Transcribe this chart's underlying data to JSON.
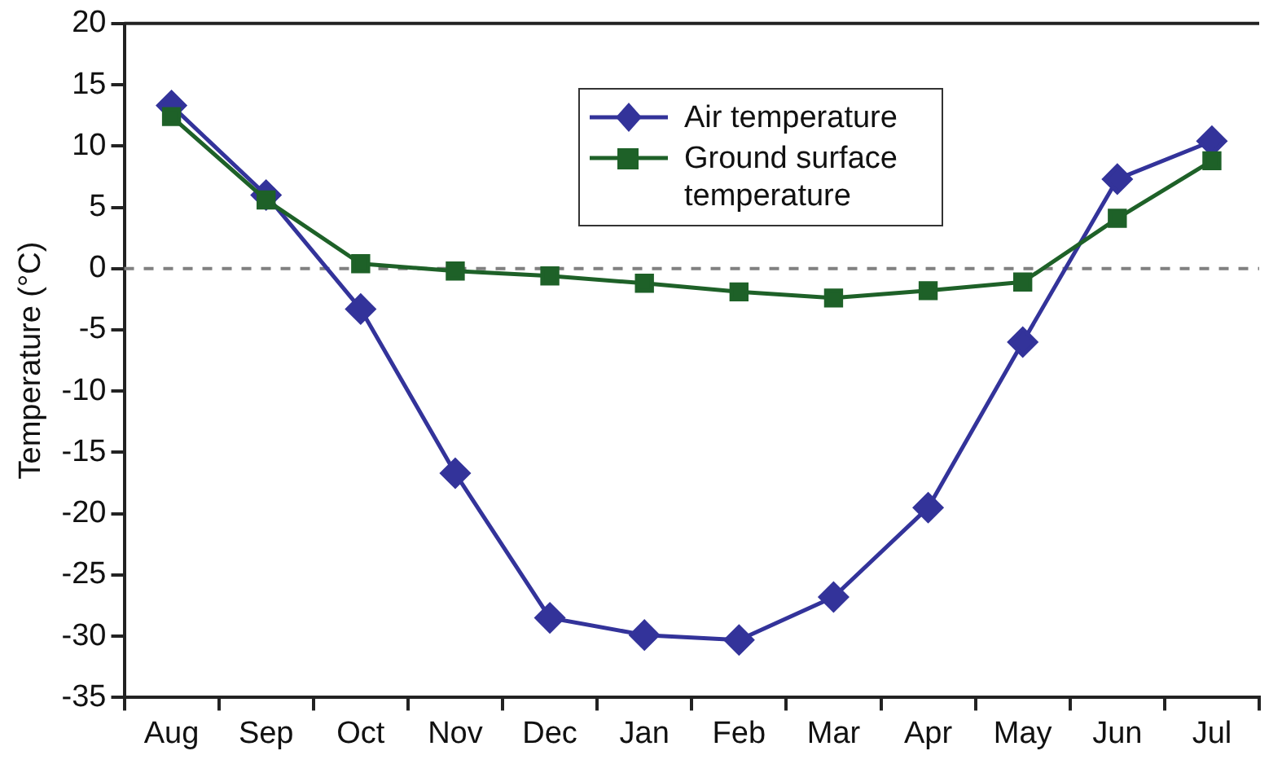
{
  "chart_data": {
    "type": "line",
    "ylabel": "Temperature (°C)",
    "categories": [
      "Aug",
      "Sep",
      "Oct",
      "Nov",
      "Dec",
      "Jan",
      "Feb",
      "Mar",
      "Apr",
      "May",
      "Jun",
      "Jul"
    ],
    "series": [
      {
        "name": "Air temperature",
        "color": "#33339a",
        "marker": "diamond",
        "values": [
          13.3,
          6.0,
          -3.3,
          -16.7,
          -28.5,
          -29.9,
          -30.3,
          -26.8,
          -19.5,
          -6.0,
          7.3,
          10.4
        ]
      },
      {
        "name": "Ground surface temperature",
        "color": "#1e6128",
        "marker": "square",
        "values": [
          12.4,
          5.6,
          0.4,
          -0.2,
          -0.6,
          -1.2,
          -1.9,
          -2.4,
          -1.8,
          -1.1,
          4.1,
          8.8
        ]
      }
    ],
    "ylim": [
      -35,
      20
    ],
    "yticks": [
      -35,
      -30,
      -25,
      -20,
      -15,
      -10,
      -5,
      0,
      5,
      10,
      15,
      20
    ],
    "ref_lines": [
      {
        "axis": "y",
        "value": 0,
        "color": "#808080",
        "line_style": "dashed"
      }
    ],
    "grid": false,
    "legend": "top",
    "line_style": "solid"
  }
}
